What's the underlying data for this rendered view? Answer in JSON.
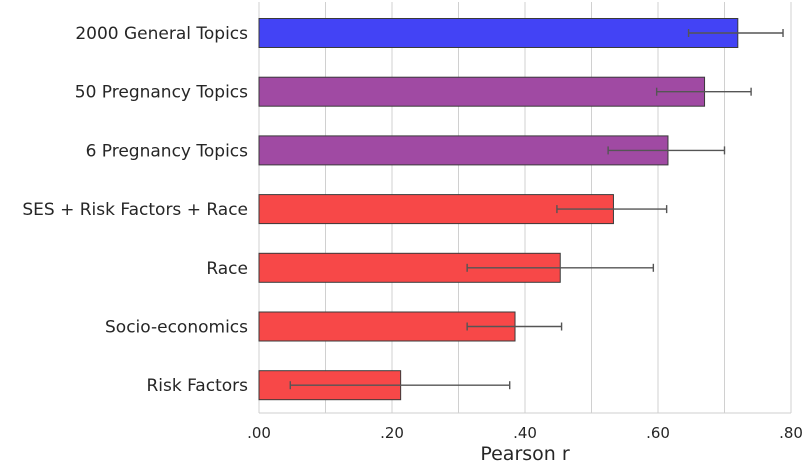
{
  "chart_data": {
    "type": "bar",
    "orientation": "horizontal",
    "title": "",
    "xlabel": "Pearson r",
    "ylabel": "",
    "xlim": [
      0,
      0.8
    ],
    "xticks": [
      0,
      0.2,
      0.4,
      0.6,
      0.8
    ],
    "xtick_labels": [
      ".00",
      ".20",
      ".40",
      ".60",
      ".80"
    ],
    "grid": true,
    "categories": [
      "2000 General Topics",
      "50 Pregnancy Topics",
      "6 Pregnancy Topics",
      "SES + Risk Factors + Race",
      "Race",
      "Socio-economics",
      "Risk Factors"
    ],
    "values": [
      0.72,
      0.67,
      0.615,
      0.533,
      0.453,
      0.385,
      0.213
    ],
    "error_low": [
      0.646,
      0.598,
      0.525,
      0.448,
      0.313,
      0.313,
      0.047
    ],
    "error_high": [
      0.788,
      0.74,
      0.7,
      0.613,
      0.593,
      0.455,
      0.377
    ],
    "colors": [
      "#4343f5",
      "#a04aa3",
      "#a04aa3",
      "#f74848",
      "#f74848",
      "#f74848",
      "#f74848"
    ]
  }
}
